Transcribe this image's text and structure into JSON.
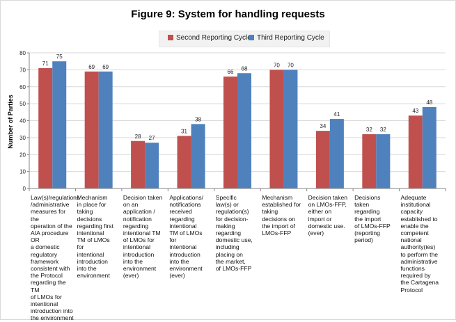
{
  "chart_data": {
    "type": "bar",
    "title": "Figure 9: System for handling requests",
    "xlabel": "",
    "ylabel": "Number of Parties",
    "ylim": [
      0,
      80
    ],
    "yticks": [
      0,
      10,
      20,
      30,
      40,
      50,
      60,
      70,
      80
    ],
    "grid": true,
    "legend_position": "top-center",
    "categories": [
      "Law(s)/regulations\n/administrative\nmeasures for the\noperation of the\nAIA procedure  OR\na domestic\nregulatory\nframework\nconsistent with\nthe Protocol\nregarding the TM\nof LMOs for\nintentional\nintroduction into\nthe environment",
      "Mechanism\nin place  for\ntaking\ndecisions\nregarding first\nintentional\nTM of LMOs\nfor\nintentional\nintroduction\ninto the\nenvironment",
      "Decision taken\non an\napplication /\nnotification\nregarding\nintentional TM\nof LMOs for\nintentional\nintroduction\ninto the\nenvironment\n(ever)",
      "Applications/\nnotifications\nreceived\nregarding\nintentional\nTM of LMOs\nfor\nintentional\nintroduction\ninto the\nenvironment\n(ever)",
      "Specific\nlaw(s) or\nregulation(s)\nfor decision-\nmaking\nregarding\ndomestic use,\nincluding\nplacing on\nthe market,\nof LMOs-FFP",
      "Mechanism\nestablished for\ntaking\ndecisions on\nthe import of\nLMOs-FFP",
      "Decision taken\non LMOs-FFP,\neither on\nimport or\ndomestic use.\n(ever)",
      "Decisions\ntaken\nregarding\nthe import\nof LMOs-FFP\n(reporting\nperiod)",
      "Adequate\ninstitutional\ncapacity\nestablished  to\nenable the\ncompetent\nnational\nauthority(ies)\nto perform the\nadministrative\nfunctions\nrequired by\nthe Cartagena\nProtocol"
    ],
    "series": [
      {
        "name": "Second Reporting Cycle",
        "color": "#c0504d",
        "values": [
          71,
          69,
          28,
          31,
          66,
          70,
          34,
          32,
          43
        ]
      },
      {
        "name": "Third Reporting Cycle",
        "color": "#4f81bd",
        "values": [
          75,
          69,
          27,
          38,
          68,
          70,
          41,
          32,
          48
        ]
      }
    ]
  }
}
